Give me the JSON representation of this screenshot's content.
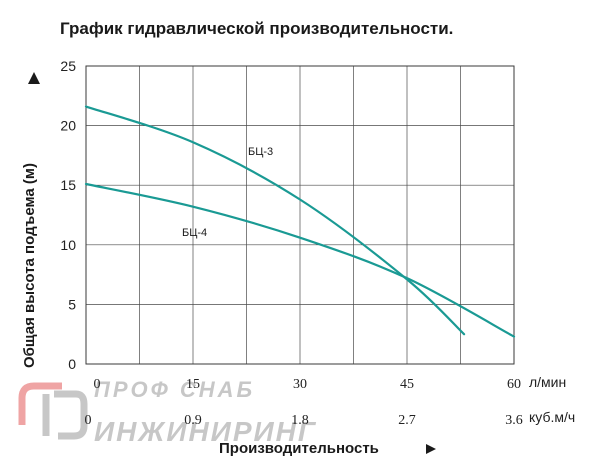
{
  "chart_data": {
    "type": "line",
    "title": "График гидравлической производительности.",
    "ylabel": "Общая высота подъема (м)",
    "xlabel": "Производительность",
    "ylim": [
      0,
      25
    ],
    "yticks": [
      0,
      5,
      10,
      15,
      20,
      25
    ],
    "x_primary": {
      "unit": "л/мин",
      "range": [
        0,
        60
      ],
      "ticks": [
        0,
        15,
        30,
        45,
        60
      ]
    },
    "x_secondary": {
      "unit": "куб.м/ч",
      "range": [
        0,
        3.6
      ],
      "ticks": [
        "0",
        "0.9",
        "1.8",
        "2.7",
        "3.6"
      ]
    },
    "grid": true,
    "series": [
      {
        "name": "БЦ-3",
        "color": "#1a9a94",
        "x": [
          0,
          15,
          30,
          45,
          53
        ],
        "y": [
          21.6,
          18.6,
          13.8,
          7.1,
          2.5
        ]
      },
      {
        "name": "БЦ-4",
        "color": "#1a9a94",
        "x": [
          0,
          15,
          30,
          45,
          60
        ],
        "y": [
          15.1,
          13.2,
          10.6,
          7.2,
          2.3
        ]
      }
    ]
  },
  "watermark": {
    "text_top": "ПРОФ СНАБ",
    "text_bottom": "ИНЖИНИРИНГ",
    "colors": {
      "gray": "#9a9a9a",
      "red": "#e35a5a"
    }
  }
}
